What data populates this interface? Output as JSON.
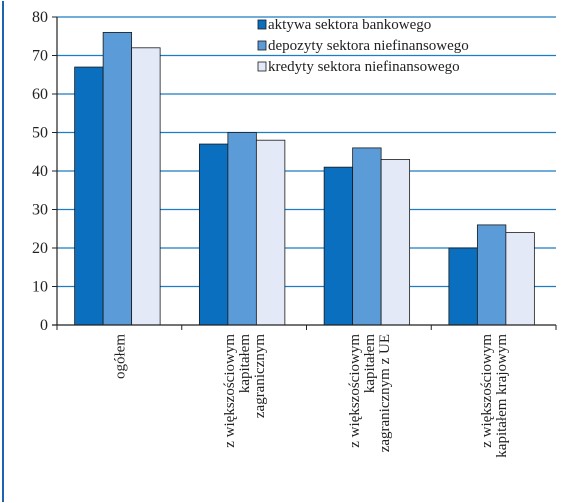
{
  "chart_data": {
    "type": "bar",
    "ylim": [
      0,
      80
    ],
    "yticks": [
      "0",
      "10",
      "20",
      "30",
      "40",
      "50",
      "60",
      "70",
      "80"
    ],
    "grid": true,
    "legend_position": "top-right",
    "categories": [
      [
        "ogółem"
      ],
      [
        "z większościowym",
        "kapitałem",
        "zagranicznym"
      ],
      [
        "z większościowym",
        "kapitałem",
        "zagranicznym z UE"
      ],
      [
        "z większościowym",
        "kapitałem krajowym"
      ]
    ],
    "series": [
      {
        "name": "aktywa sektora bankowego",
        "color": "#0a6fbe",
        "values": [
          67,
          47,
          41,
          20
        ]
      },
      {
        "name": "depozyty sektora niefinansowego",
        "color": "#5b9bd8",
        "values": [
          76,
          50,
          46,
          26
        ]
      },
      {
        "name": "kredyty sektora niefinansowego",
        "color": "#e3e9f7",
        "values": [
          72,
          48,
          43,
          24
        ]
      }
    ]
  }
}
